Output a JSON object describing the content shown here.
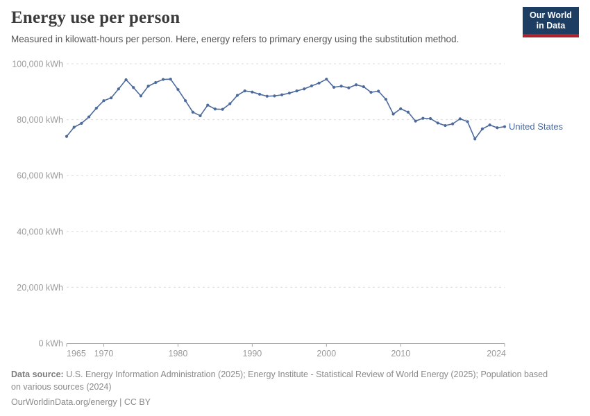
{
  "header": {
    "title": "Energy use per person",
    "subtitle": "Measured in kilowatt-hours per person. Here, energy refers to primary energy using the substitution method.",
    "logo": {
      "line1": "Our World",
      "line2": "in Data",
      "bg_color": "#1d3d63",
      "stripe_color": "#b0232a"
    }
  },
  "chart_data": {
    "type": "line",
    "title": "Energy use per person",
    "xlabel": "",
    "ylabel": "kWh",
    "xlim": [
      1965,
      2024
    ],
    "ylim": [
      0,
      100000
    ],
    "grid": "horizontal-dashed",
    "legend_position": "right-of-line-end",
    "x_ticks": [
      1965,
      1970,
      1980,
      1990,
      2000,
      2010,
      2024
    ],
    "x_tick_labels": [
      "1965",
      "1970",
      "1980",
      "1990",
      "2000",
      "2010",
      "2024"
    ],
    "y_ticks": [
      0,
      20000,
      40000,
      60000,
      80000,
      100000
    ],
    "y_tick_labels": [
      "0 kWh",
      "20,000 kWh",
      "40,000 kWh",
      "60,000 kWh",
      "80,000 kWh",
      "100,000 kWh"
    ],
    "series": [
      {
        "name": "United States",
        "color": "#4c6a9c",
        "years": [
          1965,
          1966,
          1967,
          1968,
          1969,
          1970,
          1971,
          1972,
          1973,
          1974,
          1975,
          1976,
          1977,
          1978,
          1979,
          1980,
          1981,
          1982,
          1983,
          1984,
          1985,
          1986,
          1987,
          1988,
          1989,
          1990,
          1991,
          1992,
          1993,
          1994,
          1995,
          1996,
          1997,
          1998,
          1999,
          2000,
          2001,
          2002,
          2003,
          2004,
          2005,
          2006,
          2007,
          2008,
          2009,
          2010,
          2011,
          2012,
          2013,
          2014,
          2015,
          2016,
          2017,
          2018,
          2019,
          2020,
          2021,
          2022,
          2023,
          2024
        ],
        "values": [
          74000,
          77300,
          78700,
          81000,
          84100,
          86800,
          87800,
          91000,
          94300,
          91500,
          88500,
          92000,
          93300,
          94400,
          94500,
          90800,
          86800,
          82700,
          81400,
          85200,
          83800,
          83700,
          85700,
          88700,
          90300,
          89900,
          89100,
          88400,
          88500,
          88900,
          89500,
          90300,
          91000,
          92100,
          93100,
          94500,
          91600,
          92000,
          91400,
          92500,
          91800,
          89800,
          90200,
          87300,
          82000,
          83900,
          82700,
          79500,
          80500,
          80400,
          78800,
          77900,
          78500,
          80300,
          79300,
          73100,
          76700,
          78100,
          77100,
          77500
        ]
      }
    ]
  },
  "footer": {
    "data_source_label": "Data source:",
    "source_line1": " U.S. Energy Information Administration (2025); Energy Institute - Statistical Review of World Energy (2025); Population based",
    "source_line2": "on various sources (2024)",
    "license_link": "OurWorldinData.org/energy",
    "license_suffix": " | CC BY"
  }
}
